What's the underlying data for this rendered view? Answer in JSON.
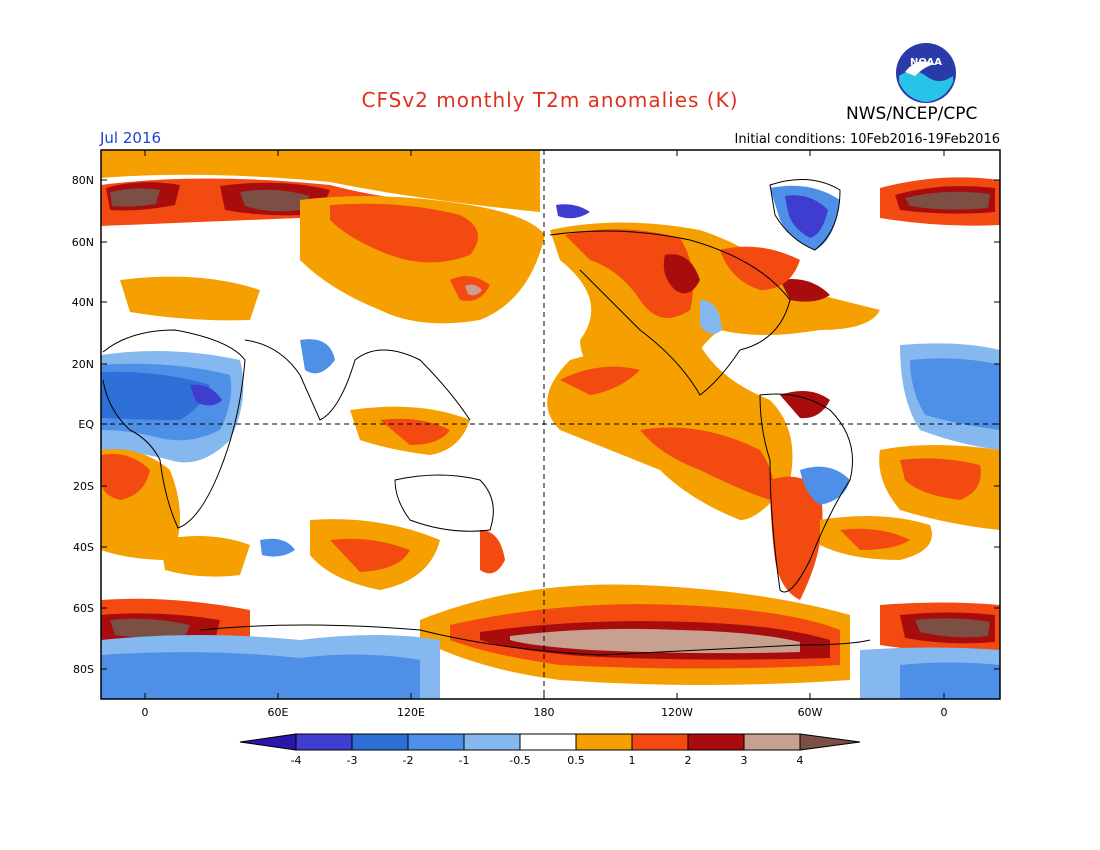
{
  "header": {
    "title": "CFSv2 monthly T2m anomalies (K)",
    "org": "NWS/NCEP/CPC",
    "month": "Jul 2016",
    "initial_conditions": "Initial conditions: 10Feb2016-19Feb2016",
    "logo_text": "NOAA"
  },
  "map": {
    "lat_labels": [
      "80N",
      "60N",
      "40N",
      "20N",
      "EQ",
      "20S",
      "40S",
      "60S",
      "80S"
    ],
    "lon_labels": [
      "0",
      "60E",
      "120E",
      "180",
      "120W",
      "60W",
      "0"
    ]
  },
  "colorbar": {
    "labels": [
      "-4",
      "-3",
      "-2",
      "-1",
      "-0.5",
      "0.5",
      "1",
      "2",
      "3",
      "4"
    ],
    "colors": [
      "#2a16a8",
      "#3f3cd0",
      "#2e6fd8",
      "#4e8fe8",
      "#86b8f0",
      "#ffffff",
      "#f5a000",
      "#f24a10",
      "#a80c0c",
      "#c8a090",
      "#7b4f44"
    ]
  }
}
